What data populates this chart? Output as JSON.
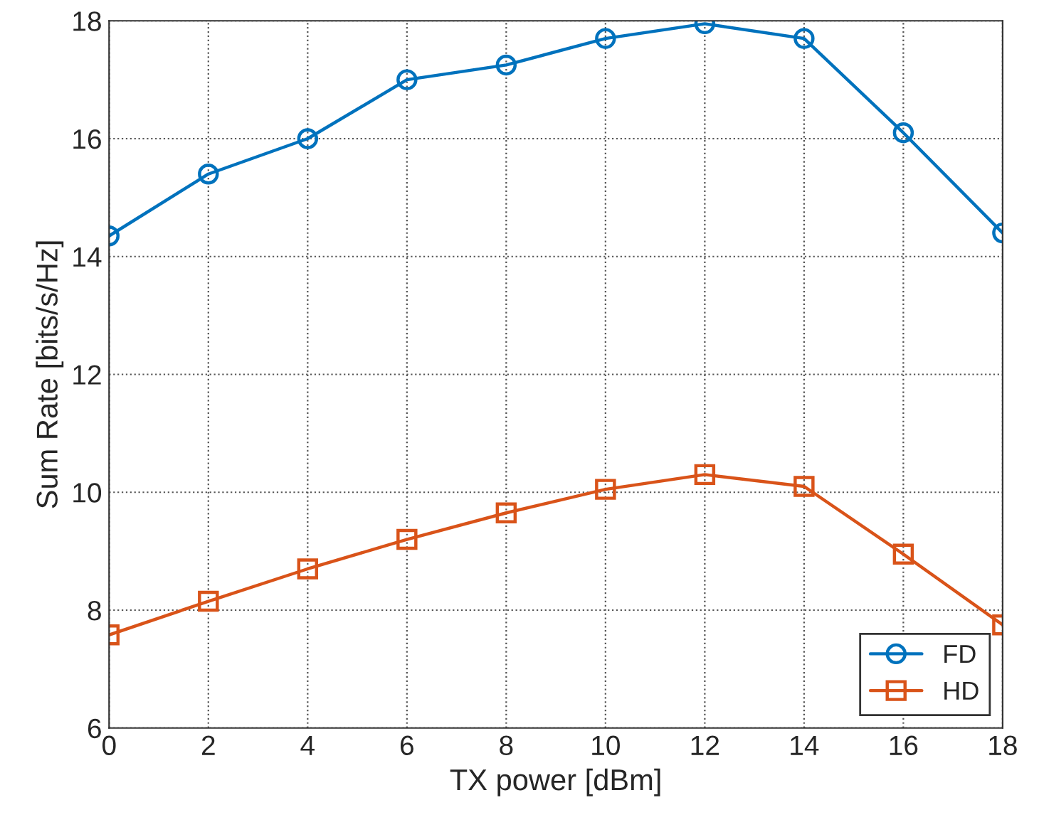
{
  "chart_data": {
    "type": "line",
    "xlabel": "TX power [dBm]",
    "ylabel": "Sum Rate [bits/s/Hz]",
    "x": [
      0,
      2,
      4,
      6,
      8,
      10,
      12,
      14,
      16,
      18
    ],
    "series": [
      {
        "name": "FD",
        "color": "#0072bd",
        "marker": "circle",
        "values": [
          14.35,
          15.4,
          16.0,
          17.0,
          17.25,
          17.7,
          17.95,
          17.7,
          16.1,
          14.4
        ]
      },
      {
        "name": "HD",
        "color": "#d95319",
        "marker": "square",
        "values": [
          7.58,
          8.15,
          8.7,
          9.2,
          9.65,
          10.05,
          10.3,
          10.1,
          8.95,
          7.75
        ]
      }
    ],
    "xlim": [
      0,
      18
    ],
    "ylim": [
      6,
      18
    ],
    "xticks": [
      0,
      2,
      4,
      6,
      8,
      10,
      12,
      14,
      16,
      18
    ],
    "yticks": [
      6,
      8,
      10,
      12,
      14,
      16,
      18
    ],
    "grid": true,
    "legend": "bottom right",
    "line_style": "solid"
  }
}
